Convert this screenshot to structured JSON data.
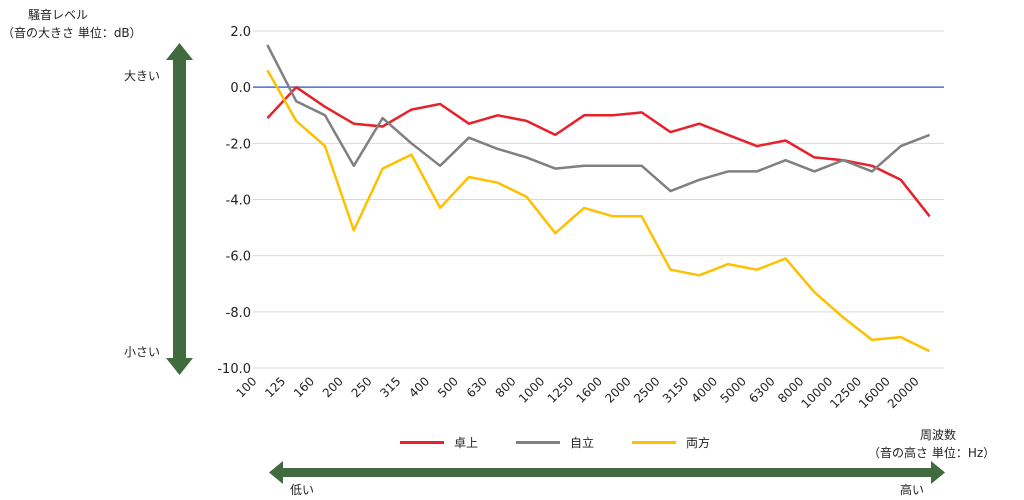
{
  "y_axis_title_line1": "騒音レベル",
  "y_axis_title_line2": "（音の大きさ 単位：dB）",
  "y_big_label": "大きい",
  "y_small_label": "小さい",
  "x_axis_title_line1": "周波数",
  "x_axis_title_line2": "（音の高さ 単位：Hz）",
  "x_low_label": "低い",
  "x_high_label": "高い",
  "colors": {
    "green_arrow": "#3f6b3f",
    "zero_line": "#4472c4",
    "grid": "#d9d9d9"
  },
  "chart_data": {
    "type": "line",
    "xlabel": "周波数",
    "ylabel": "騒音レベル",
    "ylim": [
      -10,
      2
    ],
    "yticks": [
      "2.0",
      "0.0",
      "-2.0",
      "-4.0",
      "-6.0",
      "-8.0",
      "-10.0"
    ],
    "categories": [
      "100",
      "125",
      "160",
      "200",
      "250",
      "315",
      "400",
      "500",
      "630",
      "800",
      "1000",
      "1250",
      "1600",
      "2000",
      "2500",
      "3150",
      "4000",
      "5000",
      "6300",
      "8000",
      "10000",
      "12500",
      "16000",
      "20000"
    ],
    "grid": true,
    "legend_position": "bottom",
    "series": [
      {
        "name": "卓上",
        "color": "#e8202a",
        "values": [
          -1.1,
          0.0,
          -0.7,
          -1.3,
          -1.4,
          -0.8,
          -0.6,
          -1.3,
          -1.0,
          -1.2,
          -1.7,
          -1.0,
          -1.0,
          -0.9,
          -1.6,
          -1.3,
          -1.7,
          -2.1,
          -1.9,
          -2.5,
          -2.6,
          -2.8,
          -3.3,
          -4.6
        ]
      },
      {
        "name": "自立",
        "color": "#808080",
        "values": [
          1.5,
          -0.5,
          -1.0,
          -2.8,
          -1.1,
          -2.0,
          -2.8,
          -1.8,
          -2.2,
          -2.5,
          -2.9,
          -2.8,
          -2.8,
          -2.8,
          -3.7,
          -3.3,
          -3.0,
          -3.0,
          -2.6,
          -3.0,
          -2.6,
          -3.0,
          -2.1,
          -1.7
        ]
      },
      {
        "name": "両方",
        "color": "#ffc000",
        "values": [
          0.6,
          -1.2,
          -2.1,
          -5.1,
          -2.9,
          -2.4,
          -4.3,
          -3.2,
          -3.4,
          -3.9,
          -5.2,
          -4.3,
          -4.6,
          -4.6,
          -6.5,
          -6.7,
          -6.3,
          -6.5,
          -6.1,
          -7.3,
          -8.2,
          -9.0,
          -8.9,
          -9.4
        ]
      }
    ]
  }
}
